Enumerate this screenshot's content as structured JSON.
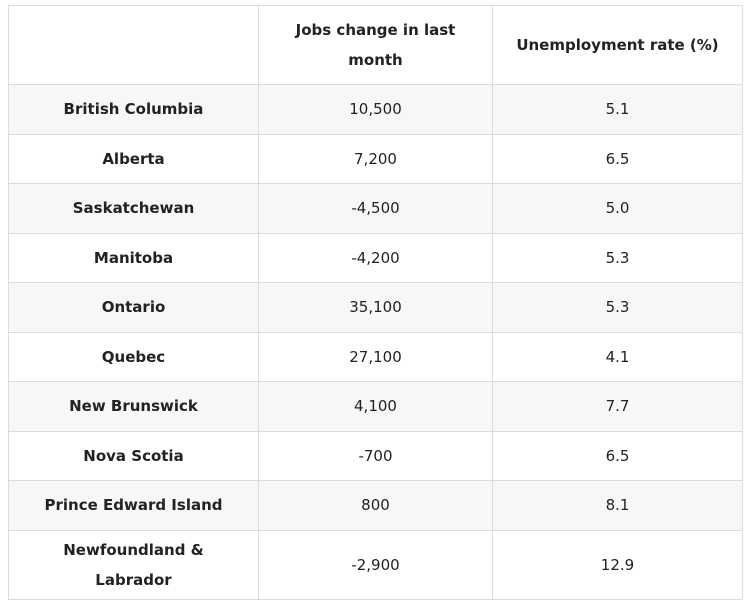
{
  "table": {
    "headers": [
      "Jobs change in last month",
      "Unemployment rate (%)"
    ],
    "rows": [
      [
        "British Columbia",
        "10,500",
        "5.1"
      ],
      [
        "Alberta",
        "7,200",
        "6.5"
      ],
      [
        "Saskatchewan",
        "-4,500",
        "5.0"
      ],
      [
        "Manitoba",
        "-4,200",
        "5.3"
      ],
      [
        "Ontario",
        "35,100",
        "5.3"
      ],
      [
        "Quebec",
        "27,100",
        "4.1"
      ],
      [
        "New Brunswick",
        "4,100",
        "7.7"
      ],
      [
        "Nova Scotia",
        "-700",
        "6.5"
      ],
      [
        "Prince Edward Island",
        "800",
        "8.1"
      ],
      [
        "Newfoundland & Labrador",
        "-2,900",
        "12.9"
      ]
    ]
  }
}
